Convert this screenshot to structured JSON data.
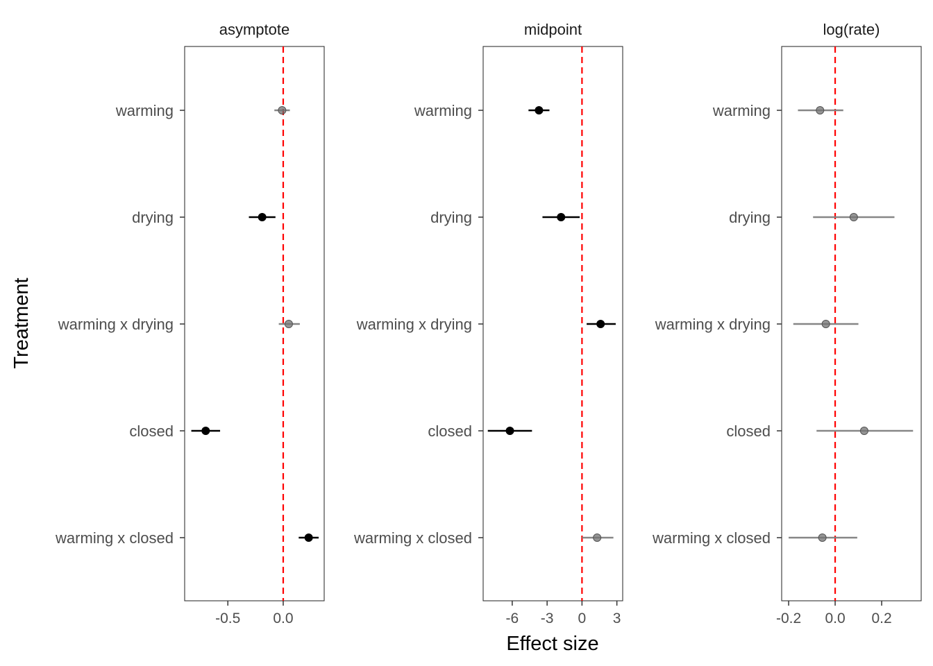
{
  "chart_data": {
    "type": "scatter",
    "xlabel": "Effect size",
    "ylabel": "Treatment",
    "categories": [
      "warming",
      "drying",
      "warming x drying",
      "closed",
      "warming x closed"
    ],
    "reference_line": {
      "x": 0,
      "color": "#ff0000",
      "style": "dashed"
    },
    "colors": {
      "significant": "#000000",
      "not_significant": "#808080"
    },
    "panels": [
      {
        "title": "asymptote",
        "xlim": [
          -0.89,
          0.37
        ],
        "ticks": [
          -0.5,
          0.0
        ],
        "tick_labels": [
          "-0.5",
          "0.0"
        ],
        "points": [
          {
            "category": "warming",
            "estimate": -0.01,
            "lower": -0.08,
            "upper": 0.06,
            "significant": false
          },
          {
            "category": "drying",
            "estimate": -0.19,
            "lower": -0.31,
            "upper": -0.07,
            "significant": true
          },
          {
            "category": "warming x drying",
            "estimate": 0.05,
            "lower": -0.04,
            "upper": 0.15,
            "significant": false
          },
          {
            "category": "closed",
            "estimate": -0.7,
            "lower": -0.83,
            "upper": -0.57,
            "significant": true
          },
          {
            "category": "warming x closed",
            "estimate": 0.23,
            "lower": 0.14,
            "upper": 0.32,
            "significant": true
          }
        ]
      },
      {
        "title": "midpoint",
        "xlim": [
          -8.5,
          3.5
        ],
        "ticks": [
          -6,
          -3,
          0,
          3
        ],
        "tick_labels": [
          "-6",
          "-3",
          "0",
          "3"
        ],
        "points": [
          {
            "category": "warming",
            "estimate": -3.7,
            "lower": -4.6,
            "upper": -2.8,
            "significant": true
          },
          {
            "category": "drying",
            "estimate": -1.8,
            "lower": -3.4,
            "upper": -0.2,
            "significant": true
          },
          {
            "category": "warming x drying",
            "estimate": 1.6,
            "lower": 0.4,
            "upper": 2.9,
            "significant": true
          },
          {
            "category": "closed",
            "estimate": -6.2,
            "lower": -8.1,
            "upper": -4.3,
            "significant": true
          },
          {
            "category": "warming x closed",
            "estimate": 1.3,
            "lower": 0.0,
            "upper": 2.7,
            "significant": false
          }
        ]
      },
      {
        "title": "log(rate)",
        "xlim": [
          -0.23,
          0.37
        ],
        "ticks": [
          -0.2,
          0.0,
          0.2
        ],
        "tick_labels": [
          "-0.2",
          "0.0",
          "0.2"
        ],
        "points": [
          {
            "category": "warming",
            "estimate": -0.065,
            "lower": -0.16,
            "upper": 0.035,
            "significant": false
          },
          {
            "category": "drying",
            "estimate": 0.08,
            "lower": -0.095,
            "upper": 0.255,
            "significant": false
          },
          {
            "category": "warming x drying",
            "estimate": -0.04,
            "lower": -0.18,
            "upper": 0.1,
            "significant": false
          },
          {
            "category": "closed",
            "estimate": 0.125,
            "lower": -0.08,
            "upper": 0.335,
            "significant": false
          },
          {
            "category": "warming x closed",
            "estimate": -0.055,
            "lower": -0.2,
            "upper": 0.095,
            "significant": false
          }
        ]
      }
    ]
  }
}
